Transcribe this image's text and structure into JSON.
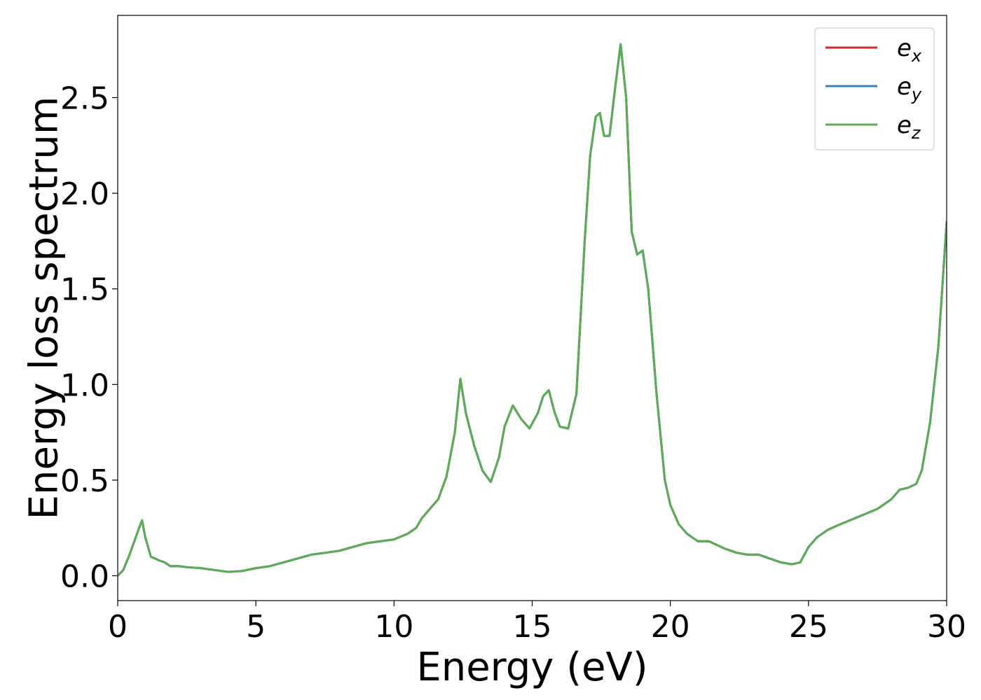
{
  "chart_data": {
    "type": "line",
    "title": "",
    "xlabel": "Energy (eV)",
    "ylabel": "Energy loss spectrum",
    "xlim": [
      0,
      30
    ],
    "ylim": [
      -0.13,
      2.93
    ],
    "xticks": [
      0,
      5,
      10,
      15,
      20,
      25,
      30
    ],
    "xtick_labels": [
      "0",
      "5",
      "10",
      "15",
      "20",
      "25",
      "30"
    ],
    "yticks": [
      0.0,
      0.5,
      1.0,
      1.5,
      2.0,
      2.5
    ],
    "ytick_labels": [
      "0.0",
      "0.5",
      "1.0",
      "1.5",
      "2.0",
      "2.5"
    ],
    "grid": false,
    "legend_position": "top-right",
    "series": [
      {
        "name": "e_x",
        "legend_base": "e",
        "legend_sub": "x",
        "color": "#d62728",
        "x": [
          0,
          0.2,
          0.4,
          0.6,
          0.8,
          0.88,
          1.0,
          1.2,
          1.5,
          1.7,
          1.9,
          2.2,
          2.5,
          3.0,
          3.5,
          4.0,
          4.5,
          5.0,
          5.5,
          6.0,
          6.5,
          7.0,
          7.5,
          8.0,
          8.5,
          9.0,
          9.5,
          10.0,
          10.5,
          10.8,
          11.0,
          11.3,
          11.6,
          11.9,
          12.2,
          12.4,
          12.6,
          12.9,
          13.2,
          13.5,
          13.8,
          14.0,
          14.3,
          14.6,
          14.9,
          15.2,
          15.4,
          15.6,
          15.8,
          16.0,
          16.3,
          16.6,
          16.9,
          17.1,
          17.3,
          17.45,
          17.6,
          17.8,
          18.0,
          18.2,
          18.4,
          18.6,
          18.8,
          19.0,
          19.2,
          19.5,
          19.8,
          20.0,
          20.3,
          20.6,
          21.0,
          21.4,
          21.7,
          22.0,
          22.4,
          22.8,
          23.2,
          23.6,
          24.0,
          24.4,
          24.7,
          25.0,
          25.3,
          25.7,
          26.0,
          26.5,
          27.0,
          27.5,
          28.0,
          28.3,
          28.6,
          28.9,
          29.1,
          29.4,
          29.7,
          30.0
        ],
        "y": [
          0.0,
          0.03,
          0.1,
          0.18,
          0.26,
          0.29,
          0.2,
          0.1,
          0.08,
          0.07,
          0.05,
          0.05,
          0.045,
          0.04,
          0.03,
          0.02,
          0.025,
          0.04,
          0.05,
          0.07,
          0.09,
          0.11,
          0.12,
          0.13,
          0.15,
          0.17,
          0.18,
          0.19,
          0.22,
          0.25,
          0.3,
          0.35,
          0.4,
          0.52,
          0.75,
          1.03,
          0.85,
          0.68,
          0.55,
          0.49,
          0.62,
          0.78,
          0.89,
          0.82,
          0.77,
          0.85,
          0.94,
          0.97,
          0.86,
          0.78,
          0.77,
          0.95,
          1.75,
          2.2,
          2.4,
          2.42,
          2.3,
          2.3,
          2.55,
          2.78,
          2.5,
          1.8,
          1.68,
          1.7,
          1.5,
          0.95,
          0.5,
          0.37,
          0.27,
          0.22,
          0.18,
          0.18,
          0.16,
          0.14,
          0.12,
          0.11,
          0.11,
          0.09,
          0.07,
          0.06,
          0.07,
          0.15,
          0.2,
          0.24,
          0.26,
          0.29,
          0.32,
          0.35,
          0.4,
          0.45,
          0.46,
          0.48,
          0.55,
          0.8,
          1.2,
          1.85
        ]
      },
      {
        "name": "e_y",
        "legend_base": "e",
        "legend_sub": "y",
        "color": "#3a7fb5",
        "x": [
          0,
          0.2,
          0.4,
          0.6,
          0.8,
          0.88,
          1.0,
          1.2,
          1.5,
          1.7,
          1.9,
          2.2,
          2.5,
          3.0,
          3.5,
          4.0,
          4.5,
          5.0,
          5.5,
          6.0,
          6.5,
          7.0,
          7.5,
          8.0,
          8.5,
          9.0,
          9.5,
          10.0,
          10.5,
          10.8,
          11.0,
          11.3,
          11.6,
          11.9,
          12.2,
          12.4,
          12.6,
          12.9,
          13.2,
          13.5,
          13.8,
          14.0,
          14.3,
          14.6,
          14.9,
          15.2,
          15.4,
          15.6,
          15.8,
          16.0,
          16.3,
          16.6,
          16.9,
          17.1,
          17.3,
          17.45,
          17.6,
          17.8,
          18.0,
          18.2,
          18.4,
          18.6,
          18.8,
          19.0,
          19.2,
          19.5,
          19.8,
          20.0,
          20.3,
          20.6,
          21.0,
          21.4,
          21.7,
          22.0,
          22.4,
          22.8,
          23.2,
          23.6,
          24.0,
          24.4,
          24.7,
          25.0,
          25.3,
          25.7,
          26.0,
          26.5,
          27.0,
          27.5,
          28.0,
          28.3,
          28.6,
          28.9,
          29.1,
          29.4,
          29.7,
          30.0
        ],
        "y": [
          0.0,
          0.03,
          0.1,
          0.18,
          0.26,
          0.29,
          0.2,
          0.1,
          0.08,
          0.07,
          0.05,
          0.05,
          0.045,
          0.04,
          0.03,
          0.02,
          0.025,
          0.04,
          0.05,
          0.07,
          0.09,
          0.11,
          0.12,
          0.13,
          0.15,
          0.17,
          0.18,
          0.19,
          0.22,
          0.25,
          0.3,
          0.35,
          0.4,
          0.52,
          0.75,
          1.03,
          0.85,
          0.68,
          0.55,
          0.49,
          0.62,
          0.78,
          0.89,
          0.82,
          0.77,
          0.85,
          0.94,
          0.97,
          0.86,
          0.78,
          0.77,
          0.95,
          1.75,
          2.2,
          2.4,
          2.42,
          2.3,
          2.3,
          2.55,
          2.78,
          2.5,
          1.8,
          1.68,
          1.7,
          1.5,
          0.95,
          0.5,
          0.37,
          0.27,
          0.22,
          0.18,
          0.18,
          0.16,
          0.14,
          0.12,
          0.11,
          0.11,
          0.09,
          0.07,
          0.06,
          0.07,
          0.15,
          0.2,
          0.24,
          0.26,
          0.29,
          0.32,
          0.35,
          0.4,
          0.45,
          0.46,
          0.48,
          0.55,
          0.8,
          1.2,
          1.85
        ]
      },
      {
        "name": "e_z",
        "legend_base": "e",
        "legend_sub": "z",
        "color": "#5aad55",
        "x": [
          0,
          0.2,
          0.4,
          0.6,
          0.8,
          0.88,
          1.0,
          1.2,
          1.5,
          1.7,
          1.9,
          2.2,
          2.5,
          3.0,
          3.5,
          4.0,
          4.5,
          5.0,
          5.5,
          6.0,
          6.5,
          7.0,
          7.5,
          8.0,
          8.5,
          9.0,
          9.5,
          10.0,
          10.5,
          10.8,
          11.0,
          11.3,
          11.6,
          11.9,
          12.2,
          12.4,
          12.6,
          12.9,
          13.2,
          13.5,
          13.8,
          14.0,
          14.3,
          14.6,
          14.9,
          15.2,
          15.4,
          15.6,
          15.8,
          16.0,
          16.3,
          16.6,
          16.9,
          17.1,
          17.3,
          17.45,
          17.6,
          17.8,
          18.0,
          18.2,
          18.4,
          18.6,
          18.8,
          19.0,
          19.2,
          19.5,
          19.8,
          20.0,
          20.3,
          20.6,
          21.0,
          21.4,
          21.7,
          22.0,
          22.4,
          22.8,
          23.2,
          23.6,
          24.0,
          24.4,
          24.7,
          25.0,
          25.3,
          25.7,
          26.0,
          26.5,
          27.0,
          27.5,
          28.0,
          28.3,
          28.6,
          28.9,
          29.1,
          29.4,
          29.7,
          30.0
        ],
        "y": [
          0.0,
          0.03,
          0.1,
          0.18,
          0.26,
          0.29,
          0.2,
          0.1,
          0.08,
          0.07,
          0.05,
          0.05,
          0.045,
          0.04,
          0.03,
          0.02,
          0.025,
          0.04,
          0.05,
          0.07,
          0.09,
          0.11,
          0.12,
          0.13,
          0.15,
          0.17,
          0.18,
          0.19,
          0.22,
          0.25,
          0.3,
          0.35,
          0.4,
          0.52,
          0.75,
          1.03,
          0.85,
          0.68,
          0.55,
          0.49,
          0.62,
          0.78,
          0.89,
          0.82,
          0.77,
          0.85,
          0.94,
          0.97,
          0.86,
          0.78,
          0.77,
          0.95,
          1.75,
          2.2,
          2.4,
          2.42,
          2.3,
          2.3,
          2.55,
          2.78,
          2.5,
          1.8,
          1.68,
          1.7,
          1.5,
          0.95,
          0.5,
          0.37,
          0.27,
          0.22,
          0.18,
          0.18,
          0.16,
          0.14,
          0.12,
          0.11,
          0.11,
          0.09,
          0.07,
          0.06,
          0.07,
          0.15,
          0.2,
          0.24,
          0.26,
          0.29,
          0.32,
          0.35,
          0.4,
          0.45,
          0.46,
          0.48,
          0.55,
          0.8,
          1.2,
          1.85
        ]
      }
    ]
  }
}
